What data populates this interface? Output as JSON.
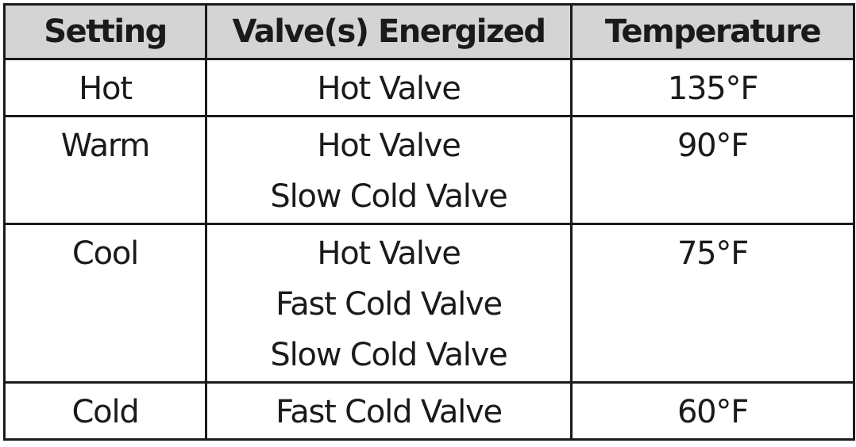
{
  "table": {
    "headers": [
      "Setting",
      "Valve(s) Energized",
      "Temperature"
    ],
    "rows": [
      {
        "setting": "Hot",
        "valves": [
          "Hot Valve"
        ],
        "temperature": "135°F"
      },
      {
        "setting": "Warm",
        "valves": [
          "Hot Valve",
          "Slow Cold Valve"
        ],
        "temperature": "90°F"
      },
      {
        "setting": "Cool",
        "valves": [
          "Hot Valve",
          "Fast Cold Valve",
          "Slow Cold Valve"
        ],
        "temperature": "75°F"
      },
      {
        "setting": "Cold",
        "valves": [
          "Fast Cold Valve"
        ],
        "temperature": "60°F"
      }
    ]
  }
}
